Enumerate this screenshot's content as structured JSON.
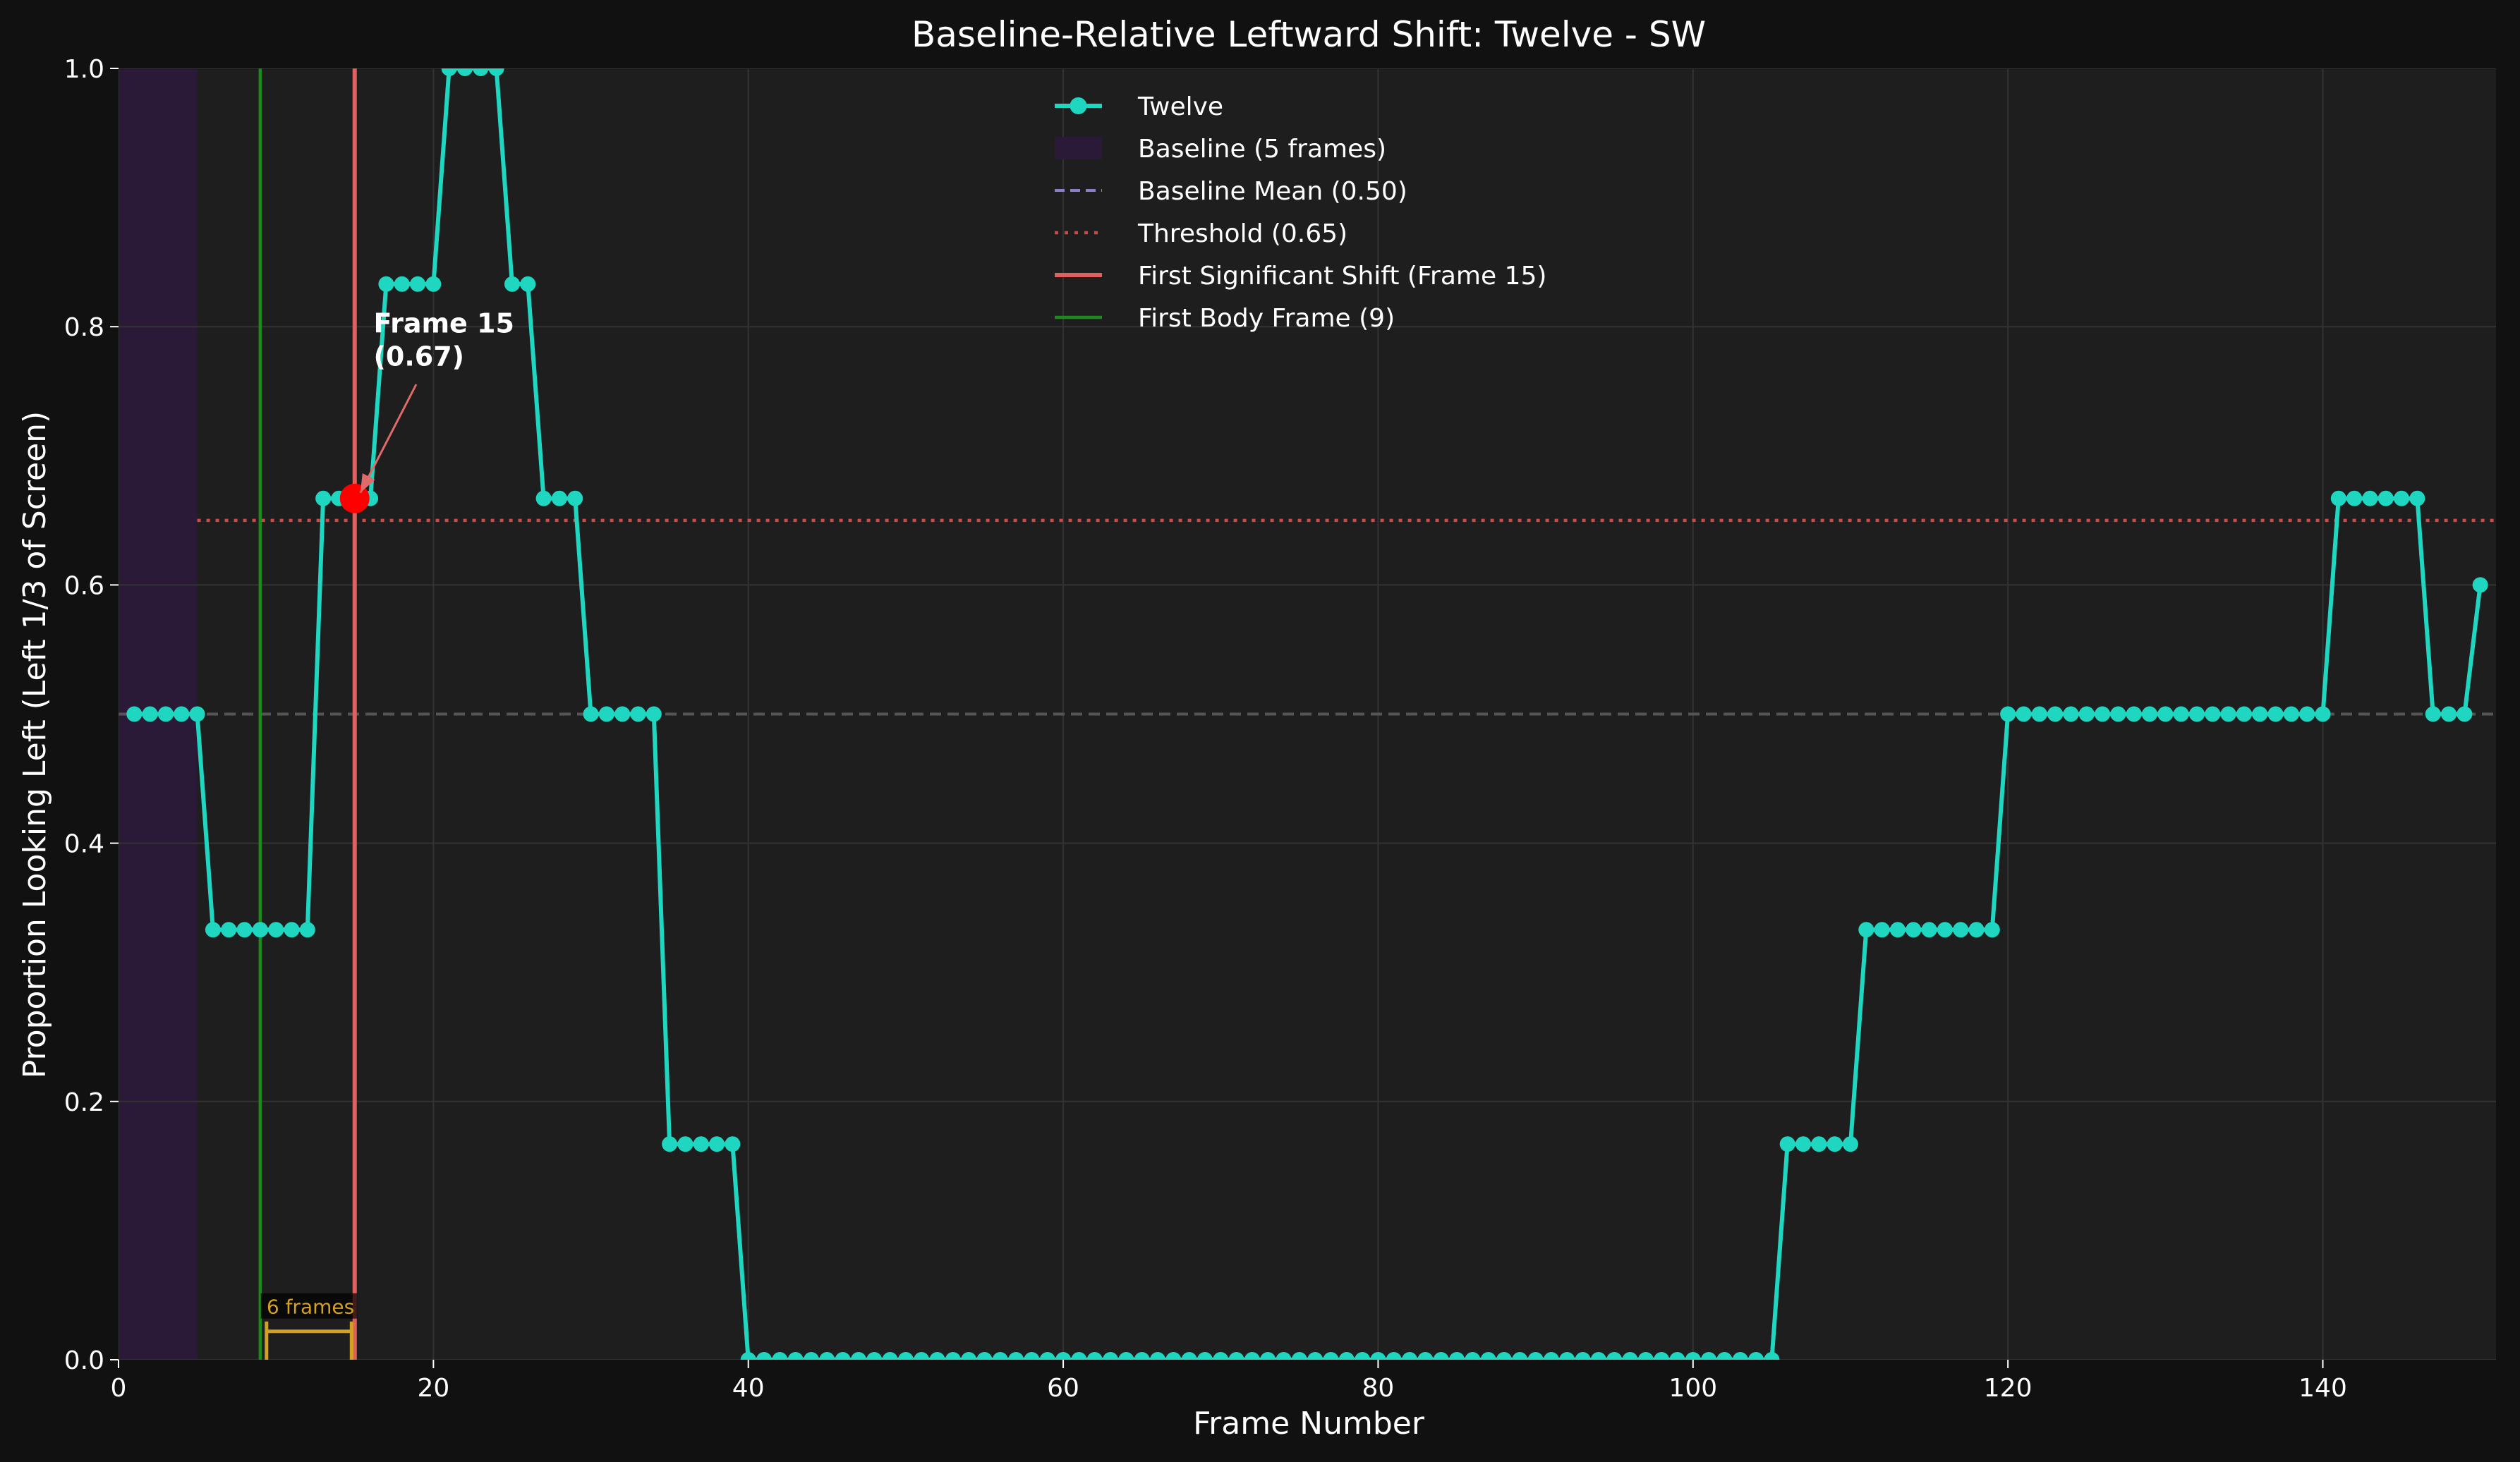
{
  "chart_data": {
    "type": "line",
    "title": "Baseline-Relative Leftward Shift: Twelve - SW",
    "xlabel": "Frame Number",
    "ylabel": "Proportion Looking Left (Left 1/3 of Screen)",
    "xlim": [
      0,
      151
    ],
    "ylim": [
      0,
      1.0
    ],
    "x_ticks": [
      0,
      20,
      40,
      60,
      80,
      100,
      120,
      140
    ],
    "y_ticks": [
      0.0,
      0.2,
      0.4,
      0.6,
      0.8,
      1.0
    ],
    "x_tick_labels": [
      "0",
      "20",
      "40",
      "60",
      "80",
      "100",
      "120",
      "140"
    ],
    "y_tick_labels": [
      "0.0",
      "0.2",
      "0.4",
      "0.6",
      "0.8",
      "1.0"
    ],
    "grid": true,
    "legend_position": "top-center",
    "series": [
      {
        "name": "Twelve",
        "color": "#1fd6c0",
        "x": [
          1,
          2,
          3,
          4,
          5,
          6,
          7,
          8,
          9,
          10,
          11,
          12,
          13,
          14,
          15,
          16,
          17,
          18,
          19,
          20,
          21,
          22,
          23,
          24,
          25,
          26,
          27,
          28,
          29,
          30,
          31,
          32,
          33,
          34,
          35,
          36,
          37,
          38,
          39,
          40,
          41,
          42,
          43,
          44,
          45,
          46,
          47,
          48,
          49,
          50,
          51,
          52,
          53,
          54,
          55,
          56,
          57,
          58,
          59,
          60,
          61,
          62,
          63,
          64,
          65,
          66,
          67,
          68,
          69,
          70,
          71,
          72,
          73,
          74,
          75,
          76,
          77,
          78,
          79,
          80,
          81,
          82,
          83,
          84,
          85,
          86,
          87,
          88,
          89,
          90,
          91,
          92,
          93,
          94,
          95,
          96,
          97,
          98,
          99,
          100,
          101,
          102,
          103,
          104,
          105,
          106,
          107,
          108,
          109,
          110,
          111,
          112,
          113,
          114,
          115,
          116,
          117,
          118,
          119,
          120,
          121,
          122,
          123,
          124,
          125,
          126,
          127,
          128,
          129,
          130,
          131,
          132,
          133,
          134,
          135,
          136,
          137,
          138,
          139,
          140,
          141,
          142,
          143,
          144,
          145,
          146,
          147,
          148,
          149,
          150
        ],
        "y": [
          0.5,
          0.5,
          0.5,
          0.5,
          0.5,
          0.333,
          0.333,
          0.333,
          0.333,
          0.333,
          0.333,
          0.333,
          0.667,
          0.667,
          0.667,
          0.667,
          0.833,
          0.833,
          0.833,
          0.833,
          1.0,
          1.0,
          1.0,
          1.0,
          0.833,
          0.833,
          0.667,
          0.667,
          0.667,
          0.5,
          0.5,
          0.5,
          0.5,
          0.5,
          0.167,
          0.167,
          0.167,
          0.167,
          0.167,
          0,
          0,
          0,
          0,
          0,
          0,
          0,
          0,
          0,
          0,
          0,
          0,
          0,
          0,
          0,
          0,
          0,
          0,
          0,
          0,
          0,
          0,
          0,
          0,
          0,
          0,
          0,
          0,
          0,
          0,
          0,
          0,
          0,
          0,
          0,
          0,
          0,
          0,
          0,
          0,
          0,
          0,
          0,
          0,
          0,
          0,
          0,
          0,
          0,
          0,
          0,
          0,
          0,
          0,
          0,
          0,
          0,
          0,
          0,
          0,
          0,
          0,
          0,
          0,
          0,
          0,
          0.167,
          0.167,
          0.167,
          0.167,
          0.167,
          0.333,
          0.333,
          0.333,
          0.333,
          0.333,
          0.333,
          0.333,
          0.333,
          0.333,
          0.5,
          0.5,
          0.5,
          0.5,
          0.5,
          0.5,
          0.5,
          0.5,
          0.5,
          0.5,
          0.5,
          0.5,
          0.5,
          0.5,
          0.5,
          0.5,
          0.5,
          0.5,
          0.5,
          0.5,
          0.5,
          0.667,
          0.667,
          0.667,
          0.667,
          0.667,
          0.667,
          0.5,
          0.5,
          0.5,
          0.6
        ]
      }
    ],
    "baseline": {
      "label": "Baseline (5 frames)",
      "x_start": 0,
      "x_end": 5,
      "color": "#2a1a38"
    },
    "baseline_mean": {
      "label": "Baseline Mean (0.50)",
      "value": 0.5,
      "color": "#8a7fc8",
      "plot_color": "#555555"
    },
    "threshold": {
      "label": "Threshold (0.65)",
      "value": 0.65,
      "color": "#d04848"
    },
    "first_shift": {
      "label": "First Significant Shift (Frame 15)",
      "frame": 15,
      "color": "#e06060"
    },
    "first_body": {
      "label": "First Body Frame (9)",
      "frame": 9,
      "color": "#1a8a1a"
    },
    "annotation": {
      "line1": "Frame 15",
      "line2": "(0.67)",
      "x": 15,
      "y": 0.667,
      "text_x": 16.2,
      "text_y": 0.79
    },
    "highlight_point": {
      "x": 15,
      "y": 0.667,
      "color": "#ff0000"
    },
    "bracket": {
      "label": "6 frames",
      "x_start": 9.4,
      "x_end": 14.8,
      "y": 0.022,
      "color": "#d4a020"
    },
    "colors": {
      "figure_bg": "#111111",
      "plot_bg": "#1e1e1e",
      "grid": "#333333",
      "text": "#ffffff",
      "arrow": "#e06a6a"
    }
  }
}
